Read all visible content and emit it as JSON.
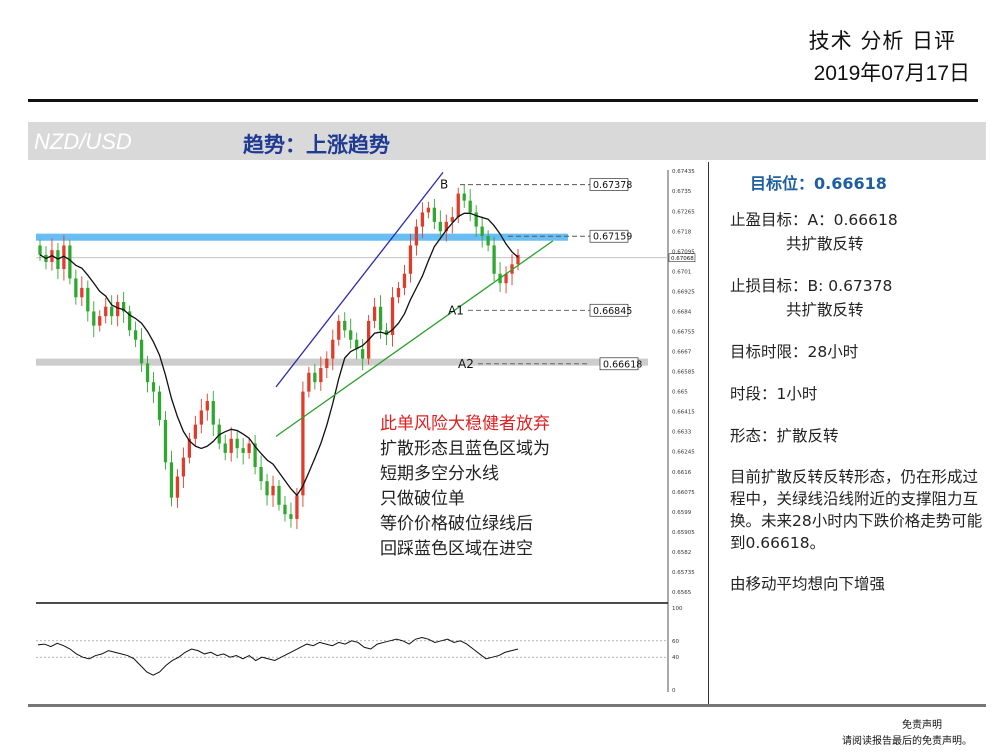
{
  "report": {
    "title": "技术 分析 日评",
    "date": "2019年07月17日"
  },
  "header": {
    "pair": "NZD/USD",
    "trend": "趋势：上涨趋势"
  },
  "panel": {
    "target": "目标位：0.66618",
    "tp_line1": "止盈目标：A：0.66618",
    "tp_line2": "共扩散反转",
    "sl_line1": "止损目标：B: 0.67378",
    "sl_line2": "共扩散反转",
    "time_limit": "目标时限：28小时",
    "timeframe": "时段：1小时",
    "pattern": "形态：扩散反转",
    "analysis": "目前扩散反转反转形态，仍在形成过程中，关绿线沿线附近的支撑阻力互换。未来28小时内下跌价格走势可能到0.66618。",
    "ma_note": "由移动平均想向下增强"
  },
  "notes": {
    "warning": "此单风险大稳健者放弃",
    "line1": "扩散形态且蓝色区域为",
    "line2": "短期多空分水线",
    "line3": "只做破位单",
    "line4": "等价价格破位绿线后",
    "line5": "回踩蓝色区域在进空"
  },
  "disclaimer": {
    "title": "免责声明",
    "text": "请阅读报告最后的免责声明。"
  },
  "chart_data": {
    "type": "candlestick",
    "symbol": "NZD/USD",
    "timeframe": "1小时",
    "ylim": [
      0.6565,
      0.6744
    ],
    "y_ticks": [
      0.67435,
      0.6735,
      0.67265,
      0.6718,
      0.67095,
      0.6701,
      0.66925,
      0.6684,
      0.66755,
      0.6667,
      0.66585,
      0.665,
      0.66415,
      0.6633,
      0.66245,
      0.6616,
      0.66075,
      0.6599,
      0.65905,
      0.6582,
      0.65735,
      0.6565
    ],
    "current_price": 0.67068,
    "levels": [
      {
        "label": "B",
        "value": 0.67378
      },
      {
        "label": "",
        "value": 0.67159
      },
      {
        "label": "A1",
        "value": 0.66845
      },
      {
        "label": "A2",
        "value": 0.66618
      }
    ],
    "blue_zone": [
      0.6714,
      0.6717
    ],
    "grey_zone": [
      0.6661,
      0.6664
    ],
    "closes": [
      0.6708,
      0.6705,
      0.671,
      0.6702,
      0.6712,
      0.6698,
      0.669,
      0.6694,
      0.6684,
      0.6678,
      0.6682,
      0.6686,
      0.6682,
      0.6688,
      0.6684,
      0.6676,
      0.6672,
      0.6662,
      0.6654,
      0.665,
      0.6638,
      0.662,
      0.6605,
      0.6614,
      0.6622,
      0.663,
      0.6636,
      0.6642,
      0.6646,
      0.6636,
      0.6628,
      0.6624,
      0.663,
      0.6626,
      0.6624,
      0.6628,
      0.6618,
      0.6612,
      0.6606,
      0.661,
      0.6602,
      0.6598,
      0.6596,
      0.6606,
      0.665,
      0.6658,
      0.6654,
      0.666,
      0.6664,
      0.6672,
      0.668,
      0.6676,
      0.6672,
      0.6668,
      0.6664,
      0.668,
      0.6686,
      0.6676,
      0.6674,
      0.669,
      0.6694,
      0.67,
      0.6712,
      0.672,
      0.6726,
      0.6728,
      0.6722,
      0.6718,
      0.6722,
      0.6724,
      0.6734,
      0.6731,
      0.6726,
      0.672,
      0.6716,
      0.6712,
      0.67,
      0.6696,
      0.67,
      0.6704,
      0.6708
    ],
    "rsi": {
      "ylim": [
        0,
        100
      ],
      "ticks": [
        100,
        60,
        40,
        0
      ],
      "levels": [
        60,
        40
      ],
      "values": [
        55,
        56,
        53,
        57,
        54,
        50,
        44,
        40,
        38,
        42,
        44,
        48,
        46,
        44,
        42,
        38,
        30,
        22,
        18,
        22,
        30,
        36,
        40,
        46,
        50,
        48,
        44,
        46,
        42,
        44,
        40,
        42,
        38,
        42,
        36,
        40,
        38,
        36,
        40,
        44,
        48,
        52,
        56,
        54,
        58,
        56,
        54,
        58,
        56,
        60,
        58,
        52,
        50,
        56,
        58,
        60,
        62,
        60,
        56,
        62,
        64,
        62,
        58,
        60,
        62,
        58,
        60,
        56,
        50,
        44,
        38,
        40,
        42,
        46,
        48,
        50
      ]
    }
  }
}
